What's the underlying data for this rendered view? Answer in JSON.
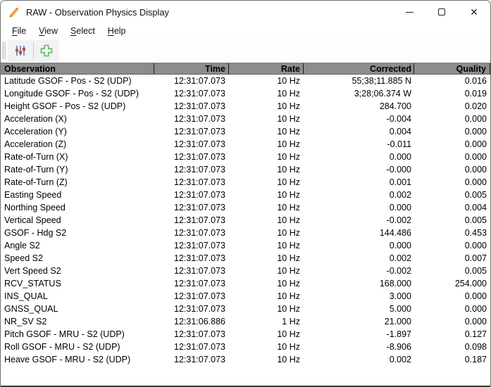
{
  "window": {
    "title": "RAW - Observation Physics Display"
  },
  "menu": {
    "items": [
      {
        "label": "File"
      },
      {
        "label": "View"
      },
      {
        "label": "Select"
      },
      {
        "label": "Help"
      }
    ]
  },
  "toolbar": {
    "buttons": [
      {
        "name": "display-settings",
        "icon": "sliders-icon"
      },
      {
        "name": "add-observation",
        "icon": "add-plus-icon"
      }
    ]
  },
  "icons": [
    "pen-icon",
    "sliders-icon",
    "add-plus-icon",
    "minimize-icon",
    "maximize-icon",
    "close-icon"
  ],
  "colors": {
    "header_gray": "#8c8c8c",
    "slider_blue": "#4a7ebb",
    "slider_red": "#cc4040",
    "plus_green": "#6abf69",
    "pen_orange": "#f2a33c"
  },
  "controls": {
    "close_glyph": "✕"
  },
  "table": {
    "columns": [
      "Observation",
      "Time",
      "Rate",
      "Corrected",
      "Quality"
    ],
    "rows": [
      {
        "observation": "Latitude GSOF - Pos - S2 (UDP)",
        "time": "12:31:07.073",
        "rate": "10 Hz",
        "corrected": "55;38;11.885 N",
        "quality": "0.016"
      },
      {
        "observation": "Longitude GSOF - Pos - S2 (UDP)",
        "time": "12:31:07.073",
        "rate": "10 Hz",
        "corrected": "3;28;06.374 W",
        "quality": "0.019"
      },
      {
        "observation": "Height GSOF - Pos - S2 (UDP)",
        "time": "12:31:07.073",
        "rate": "10 Hz",
        "corrected": "284.700",
        "quality": "0.020"
      },
      {
        "observation": "Acceleration (X)",
        "time": "12:31:07.073",
        "rate": "10 Hz",
        "corrected": "-0.004",
        "quality": "0.000"
      },
      {
        "observation": "Acceleration (Y)",
        "time": "12:31:07.073",
        "rate": "10 Hz",
        "corrected": "0.004",
        "quality": "0.000"
      },
      {
        "observation": "Acceleration (Z)",
        "time": "12:31:07.073",
        "rate": "10 Hz",
        "corrected": "-0.011",
        "quality": "0.000"
      },
      {
        "observation": "Rate-of-Turn (X)",
        "time": "12:31:07.073",
        "rate": "10 Hz",
        "corrected": "0.000",
        "quality": "0.000"
      },
      {
        "observation": "Rate-of-Turn (Y)",
        "time": "12:31:07.073",
        "rate": "10 Hz",
        "corrected": "-0.000",
        "quality": "0.000"
      },
      {
        "observation": "Rate-of-Turn (Z)",
        "time": "12:31:07.073",
        "rate": "10 Hz",
        "corrected": "0.001",
        "quality": "0.000"
      },
      {
        "observation": "Easting Speed",
        "time": "12:31:07.073",
        "rate": "10 Hz",
        "corrected": "0.002",
        "quality": "0.005"
      },
      {
        "observation": "Northing Speed",
        "time": "12:31:07.073",
        "rate": "10 Hz",
        "corrected": "0.000",
        "quality": "0.004"
      },
      {
        "observation": "Vertical Speed",
        "time": "12:31:07.073",
        "rate": "10 Hz",
        "corrected": "-0.002",
        "quality": "0.005"
      },
      {
        "observation": "GSOF - Hdg S2",
        "time": "12:31:07.073",
        "rate": "10 Hz",
        "corrected": "144.486",
        "quality": "0.453"
      },
      {
        "observation": "Angle S2",
        "time": "12:31:07.073",
        "rate": "10 Hz",
        "corrected": "0.000",
        "quality": "0.000"
      },
      {
        "observation": "Speed S2",
        "time": "12:31:07.073",
        "rate": "10 Hz",
        "corrected": "0.002",
        "quality": "0.007"
      },
      {
        "observation": "Vert Speed S2",
        "time": "12:31:07.073",
        "rate": "10 Hz",
        "corrected": "-0.002",
        "quality": "0.005"
      },
      {
        "observation": "RCV_STATUS",
        "time": "12:31:07.073",
        "rate": "10 Hz",
        "corrected": "168.000",
        "quality": "254.000"
      },
      {
        "observation": "INS_QUAL",
        "time": "12:31:07.073",
        "rate": "10 Hz",
        "corrected": "3.000",
        "quality": "0.000"
      },
      {
        "observation": "GNSS_QUAL",
        "time": "12:31:07.073",
        "rate": "10 Hz",
        "corrected": "5.000",
        "quality": "0.000"
      },
      {
        "observation": "NR_SV S2",
        "time": "12:31:06.886",
        "rate": "1 Hz",
        "corrected": "21.000",
        "quality": "0.000"
      },
      {
        "observation": "Pitch GSOF - MRU - S2 (UDP)",
        "time": "12:31:07.073",
        "rate": "10 Hz",
        "corrected": "-1.897",
        "quality": "0.127"
      },
      {
        "observation": "Roll GSOF - MRU - S2 (UDP)",
        "time": "12:31:07.073",
        "rate": "10 Hz",
        "corrected": "-8.906",
        "quality": "0.098"
      },
      {
        "observation": "Heave GSOF - MRU - S2 (UDP)",
        "time": "12:31:07.073",
        "rate": "10 Hz",
        "corrected": "0.002",
        "quality": "0.187"
      }
    ]
  }
}
